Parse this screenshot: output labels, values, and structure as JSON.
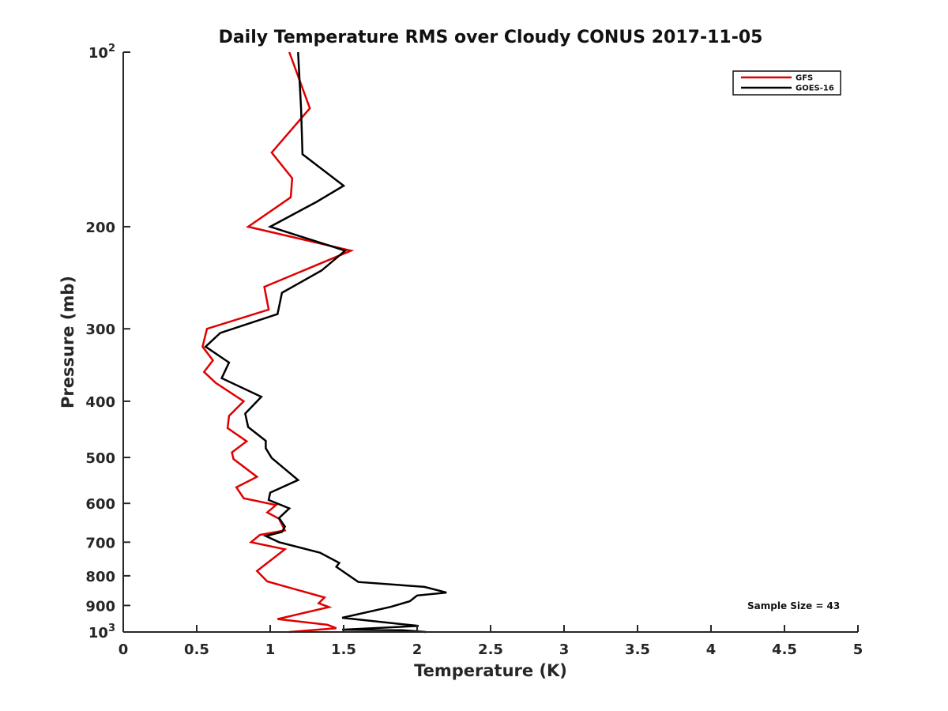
{
  "chart_data": {
    "type": "line",
    "title": "Daily Temperature RMS over Cloudy CONUS 2017-11-05",
    "xlabel": "Temperature (K)",
    "ylabel": "Pressure (mb)",
    "xlim": [
      0,
      5
    ],
    "ylim": [
      100,
      1000
    ],
    "y_scale": "log",
    "y_reversed": true,
    "grid": false,
    "legend_position": "top-right",
    "x_ticks": [
      "0",
      "0.5",
      "1",
      "1.5",
      "2",
      "2.5",
      "3",
      "3.5",
      "4",
      "4.5",
      "5"
    ],
    "y_ticks": [
      {
        "value": 100,
        "base": "10",
        "exp": "2"
      },
      {
        "value": 200,
        "label": "200"
      },
      {
        "value": 300,
        "label": "300"
      },
      {
        "value": 400,
        "label": "400"
      },
      {
        "value": 500,
        "label": "500"
      },
      {
        "value": 600,
        "label": "600"
      },
      {
        "value": 700,
        "label": "700"
      },
      {
        "value": 800,
        "label": "800"
      },
      {
        "value": 900,
        "label": "900"
      },
      {
        "value": 1000,
        "base": "10",
        "exp": "3"
      }
    ],
    "annotation": "Sample Size = 43",
    "series": [
      {
        "name": "GFS",
        "color": "#e00000",
        "points": [
          [
            1.13,
            100
          ],
          [
            1.27,
            125
          ],
          [
            1.01,
            149
          ],
          [
            1.15,
            165
          ],
          [
            1.14,
            178
          ],
          [
            0.85,
            200
          ],
          [
            1.55,
            220
          ],
          [
            0.96,
            254
          ],
          [
            0.99,
            278
          ],
          [
            0.57,
            300
          ],
          [
            0.54,
            322
          ],
          [
            0.61,
            340
          ],
          [
            0.55,
            356
          ],
          [
            0.63,
            372
          ],
          [
            0.82,
            400
          ],
          [
            0.72,
            424
          ],
          [
            0.71,
            445
          ],
          [
            0.84,
            469
          ],
          [
            0.74,
            490
          ],
          [
            0.75,
            503
          ],
          [
            0.91,
            540
          ],
          [
            0.77,
            563
          ],
          [
            0.82,
            588
          ],
          [
            1.04,
            604
          ],
          [
            0.98,
            622
          ],
          [
            1.06,
            638
          ],
          [
            1.1,
            668
          ],
          [
            0.93,
            680
          ],
          [
            0.87,
            700
          ],
          [
            1.1,
            720
          ],
          [
            0.91,
            785
          ],
          [
            0.98,
            818
          ],
          [
            1.37,
            872
          ],
          [
            1.33,
            892
          ],
          [
            1.4,
            906
          ],
          [
            1.05,
            950
          ],
          [
            1.39,
            972
          ],
          [
            1.45,
            985
          ],
          [
            1.13,
            1000
          ]
        ]
      },
      {
        "name": "GOES-16",
        "color": "#000000",
        "points": [
          [
            1.19,
            100
          ],
          [
            1.21,
            125
          ],
          [
            1.22,
            150
          ],
          [
            1.5,
            170
          ],
          [
            1.32,
            181
          ],
          [
            1.0,
            200
          ],
          [
            1.51,
            220
          ],
          [
            1.35,
            238
          ],
          [
            1.08,
            260
          ],
          [
            1.05,
            283
          ],
          [
            0.66,
            305
          ],
          [
            0.56,
            322
          ],
          [
            0.72,
            343
          ],
          [
            0.67,
            365
          ],
          [
            0.94,
            393
          ],
          [
            0.83,
            420
          ],
          [
            0.85,
            443
          ],
          [
            0.97,
            468
          ],
          [
            0.97,
            482
          ],
          [
            1.01,
            501
          ],
          [
            1.19,
            547
          ],
          [
            1.0,
            575
          ],
          [
            0.99,
            592
          ],
          [
            1.13,
            612
          ],
          [
            1.06,
            636
          ],
          [
            1.1,
            658
          ],
          [
            1.08,
            672
          ],
          [
            0.97,
            683
          ],
          [
            1.06,
            700
          ],
          [
            1.34,
            730
          ],
          [
            1.47,
            760
          ],
          [
            1.45,
            772
          ],
          [
            1.6,
            820
          ],
          [
            2.05,
            836
          ],
          [
            2.2,
            855
          ],
          [
            2.0,
            865
          ],
          [
            1.95,
            885
          ],
          [
            1.82,
            905
          ],
          [
            1.49,
            945
          ],
          [
            2.01,
            976
          ],
          [
            1.49,
            991
          ],
          [
            1.9,
            993
          ],
          [
            2.06,
            1000
          ]
        ]
      }
    ]
  }
}
